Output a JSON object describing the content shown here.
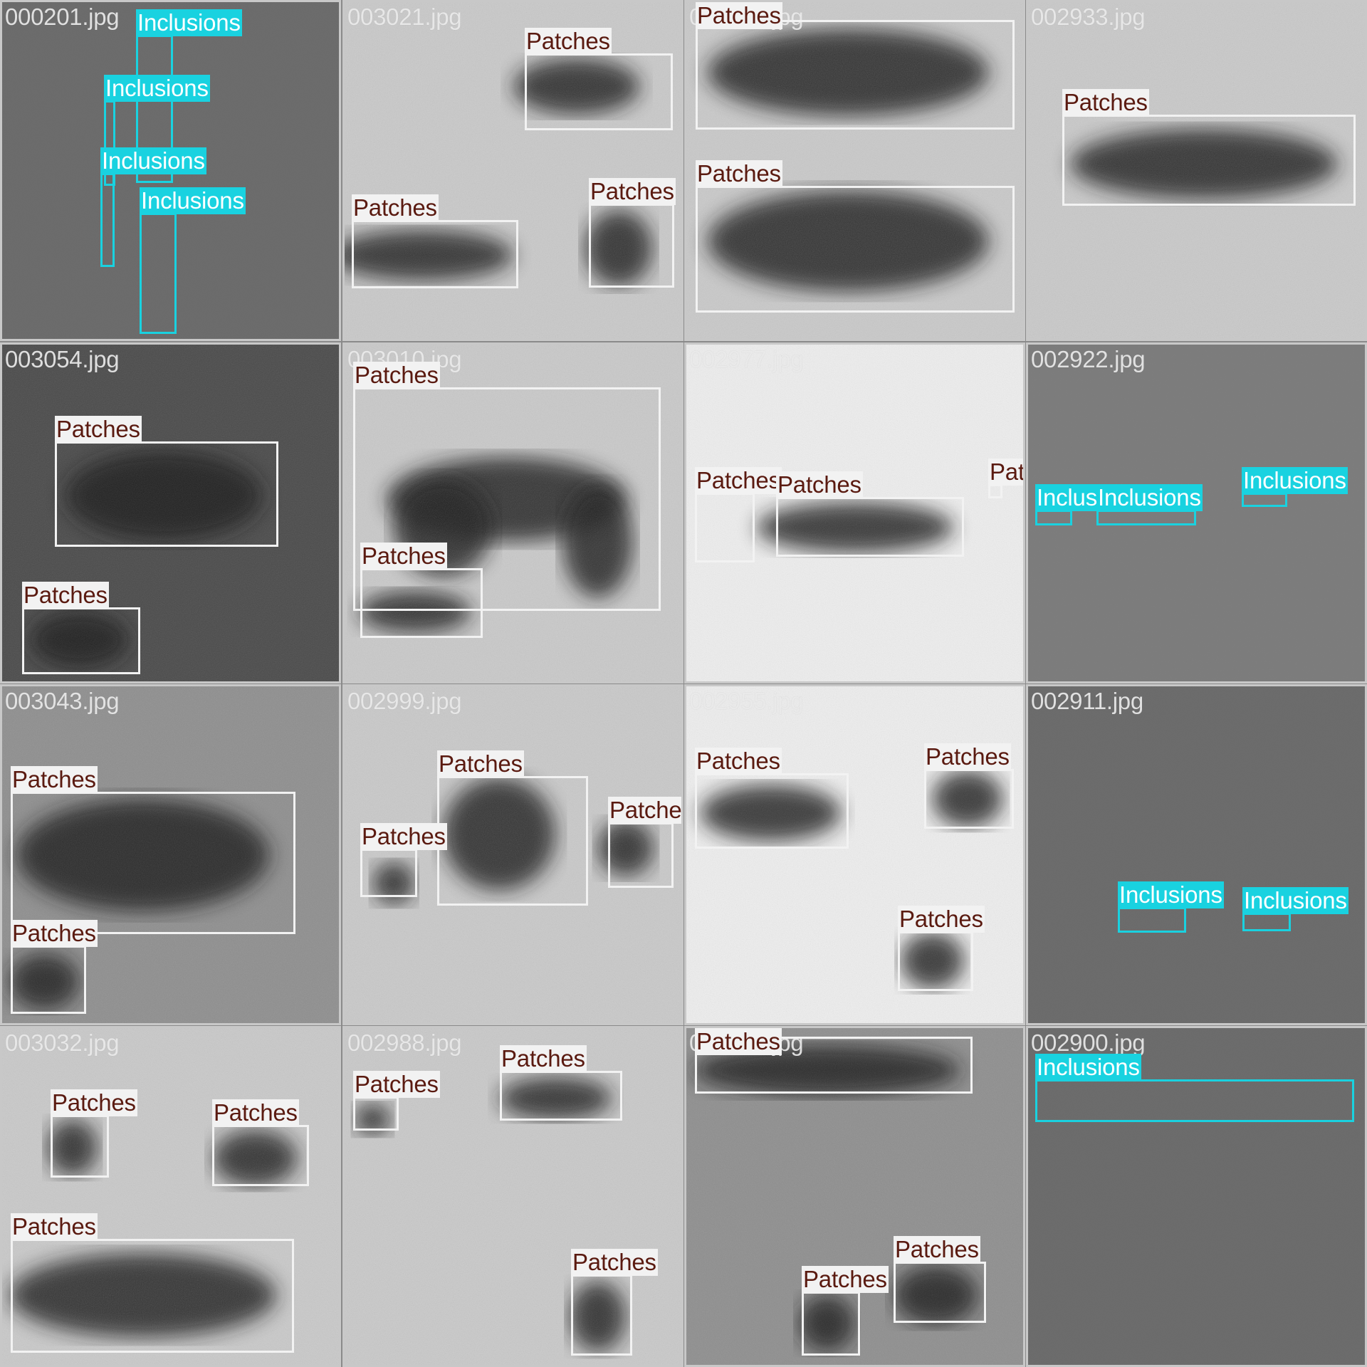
{
  "colors": {
    "patches_box": "#f2f2f2",
    "patches_label_bg": "#f2f2f2",
    "patches_label_text": "#5a1a10",
    "inclusions_box": "#19d2e0",
    "inclusions_label_bg": "#19d2e0",
    "inclusions_label_text": "#ffffff",
    "filename_text": "#eaeaea"
  },
  "class_names": {
    "patches": "Patches",
    "inclusions": "Inclusions"
  },
  "tiles": [
    {
      "filename": "000201.jpg",
      "tone": "flat-dark"
    },
    {
      "filename": "003021.jpg",
      "tone": "light-texture"
    },
    {
      "filename": "003065.jpg",
      "tone": "light-texture"
    },
    {
      "filename": "002933.jpg",
      "tone": "light-texture"
    },
    {
      "filename": "003054.jpg",
      "tone": "dark-texture"
    },
    {
      "filename": "003010.jpg",
      "tone": "light-texture"
    },
    {
      "filename": "002977.jpg",
      "tone": "very-light"
    },
    {
      "filename": "002922.jpg",
      "tone": "flat-mid"
    },
    {
      "filename": "003043.jpg",
      "tone": "mid-texture"
    },
    {
      "filename": "002999.jpg",
      "tone": "light-texture"
    },
    {
      "filename": "002955.jpg",
      "tone": "very-light"
    },
    {
      "filename": "002911.jpg",
      "tone": "flat-dark"
    },
    {
      "filename": "003032.jpg",
      "tone": "light-texture"
    },
    {
      "filename": "002988.jpg",
      "tone": "light-texture"
    },
    {
      "filename": "002944.jpg",
      "tone": "mid-texture"
    },
    {
      "filename": "002900.jpg",
      "tone": "flat-dark"
    }
  ]
}
